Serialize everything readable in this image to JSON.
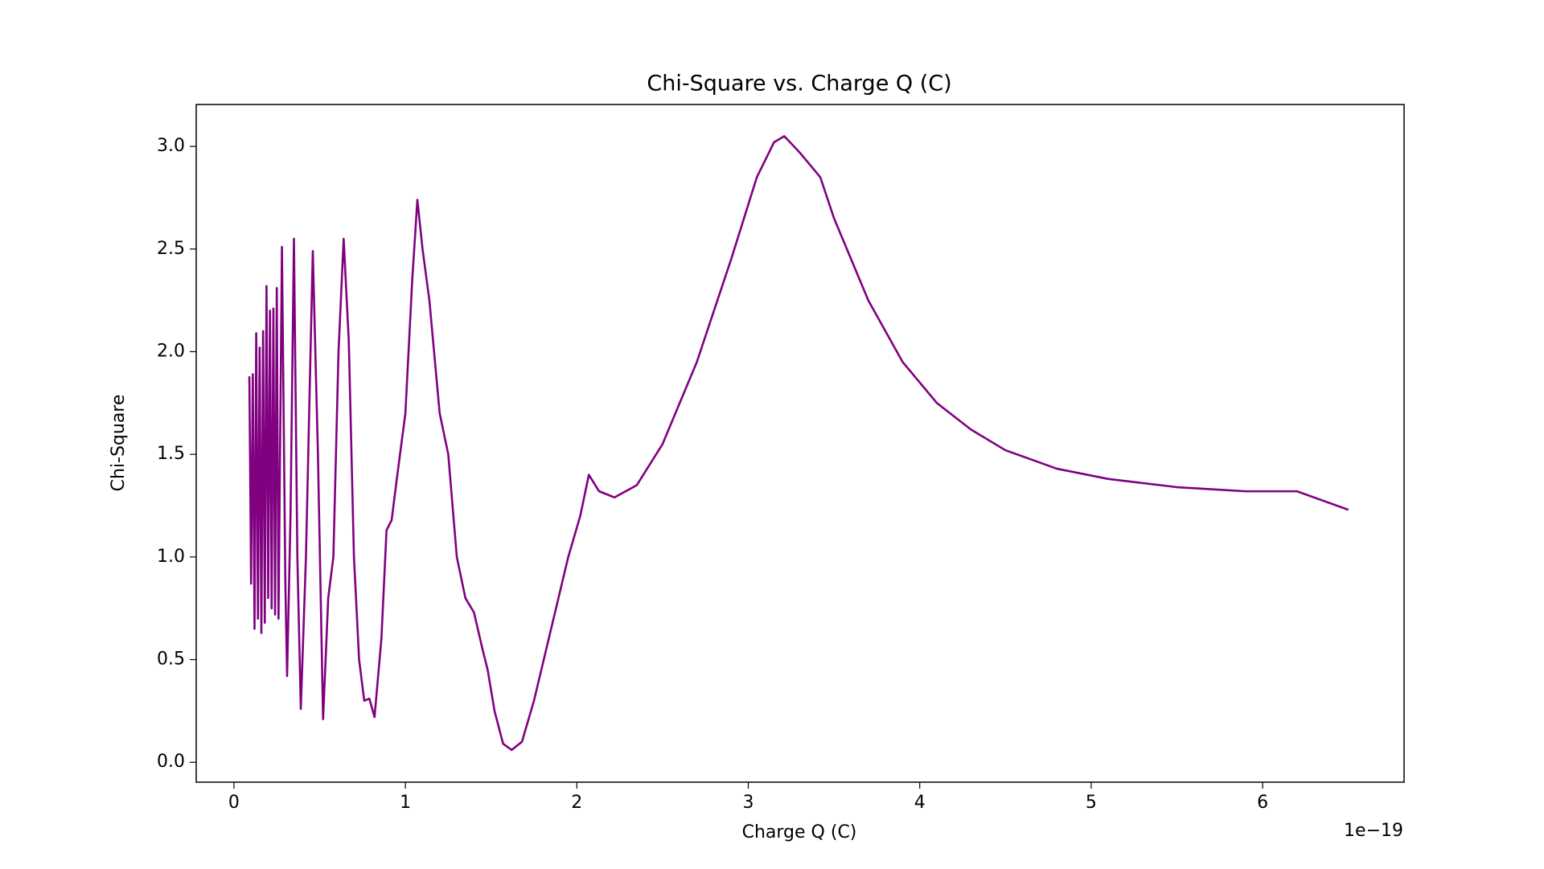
{
  "chart_data": {
    "type": "line",
    "title": "Chi-Square vs. Charge Q (C)",
    "x_label": "Charge Q (C)",
    "y_label": "Chi-Square",
    "x_offset_label": "1e−19",
    "xlim": [
      -0.22,
      6.825
    ],
    "ylim": [
      -0.097,
      3.204
    ],
    "xticks": [
      0,
      1,
      2,
      3,
      4,
      5,
      6
    ],
    "yticks": [
      {
        "value": 0,
        "label": "0.0"
      },
      {
        "value": 0.5,
        "label": "0.5"
      },
      {
        "value": 1,
        "label": "1.0"
      },
      {
        "value": 1.5,
        "label": "1.5"
      },
      {
        "value": 2,
        "label": "2.0"
      },
      {
        "value": 2.5,
        "label": "2.5"
      },
      {
        "value": 3,
        "label": "3.0"
      }
    ],
    "grid": false,
    "x": [
      0.09,
      0.1,
      0.11,
      0.12,
      0.13,
      0.14,
      0.15,
      0.16,
      0.17,
      0.18,
      0.19,
      0.2,
      0.21,
      0.22,
      0.23,
      0.24,
      0.25,
      0.26,
      0.28,
      0.3,
      0.31,
      0.33,
      0.35,
      0.37,
      0.39,
      0.42,
      0.46,
      0.49,
      0.52,
      0.55,
      0.58,
      0.61,
      0.64,
      0.67,
      0.7,
      0.73,
      0.76,
      0.79,
      0.82,
      0.86,
      0.89,
      0.92,
      0.95,
      1.0,
      1.04,
      1.07,
      1.1,
      1.14,
      1.2,
      1.25,
      1.3,
      1.35,
      1.4,
      1.45,
      1.48,
      1.52,
      1.57,
      1.62,
      1.68,
      1.75,
      1.85,
      1.95,
      2.02,
      2.07,
      2.13,
      2.22,
      2.35,
      2.5,
      2.7,
      2.9,
      3.05,
      3.15,
      3.21,
      3.3,
      3.42,
      3.5,
      3.7,
      3.9,
      4.1,
      4.3,
      4.5,
      4.8,
      5.1,
      5.5,
      5.9,
      6.2,
      6.5
    ],
    "series": [
      {
        "name": "Chi-Square",
        "color": "#800080",
        "values": [
          1.88,
          0.87,
          1.89,
          0.65,
          2.09,
          0.7,
          2.02,
          0.63,
          2.1,
          0.68,
          2.32,
          0.8,
          2.2,
          0.75,
          2.21,
          0.72,
          2.31,
          0.7,
          2.51,
          0.87,
          0.42,
          1.2,
          2.55,
          1.0,
          0.26,
          1.0,
          2.49,
          1.5,
          0.21,
          0.8,
          1.0,
          2.0,
          2.55,
          2.05,
          1.0,
          0.5,
          0.3,
          0.31,
          0.22,
          0.6,
          1.13,
          1.18,
          1.38,
          1.7,
          2.35,
          2.74,
          2.5,
          2.25,
          1.7,
          1.5,
          1.0,
          0.8,
          0.73,
          0.55,
          0.45,
          0.25,
          0.09,
          0.06,
          0.1,
          0.3,
          0.65,
          1.0,
          1.2,
          1.4,
          1.32,
          1.29,
          1.35,
          1.55,
          1.95,
          2.45,
          2.85,
          3.02,
          3.05,
          2.97,
          2.85,
          2.65,
          2.25,
          1.95,
          1.75,
          1.62,
          1.52,
          1.43,
          1.38,
          1.34,
          1.32,
          1.32,
          1.23
        ]
      }
    ]
  }
}
